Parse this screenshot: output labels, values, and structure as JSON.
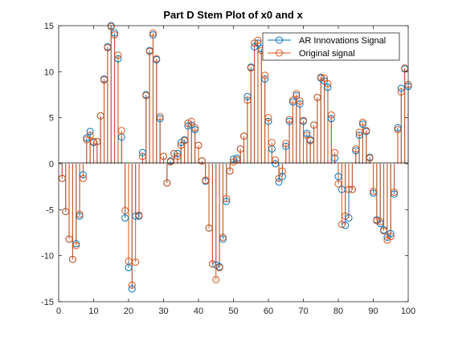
{
  "chart_data": {
    "type": "stem",
    "title": "Part D Stem Plot of x0 and x",
    "xlabel": "",
    "ylabel": "",
    "xlim": [
      0,
      100
    ],
    "ylim": [
      -15,
      15
    ],
    "xticks": [
      0,
      10,
      20,
      30,
      40,
      50,
      60,
      70,
      80,
      90,
      100
    ],
    "yticks": [
      -15,
      -10,
      -5,
      0,
      5,
      10,
      15
    ],
    "grid": false,
    "legend_position": "top-right",
    "x": [
      1,
      2,
      3,
      4,
      5,
      6,
      7,
      8,
      9,
      10,
      11,
      12,
      13,
      14,
      15,
      16,
      17,
      18,
      19,
      20,
      21,
      22,
      23,
      24,
      25,
      26,
      27,
      28,
      29,
      30,
      31,
      32,
      33,
      34,
      35,
      36,
      37,
      38,
      39,
      40,
      41,
      42,
      43,
      44,
      45,
      46,
      47,
      48,
      49,
      50,
      51,
      52,
      53,
      54,
      55,
      56,
      57,
      58,
      59,
      60,
      61,
      62,
      63,
      64,
      65,
      66,
      67,
      68,
      69,
      70,
      71,
      72,
      73,
      74,
      75,
      76,
      77,
      78,
      79,
      80,
      81,
      82,
      83,
      84,
      85,
      86,
      87,
      88,
      89,
      90,
      91,
      92,
      93,
      94,
      95,
      96,
      97,
      98,
      99,
      100
    ],
    "series": [
      {
        "name": "AR Innovations Signal",
        "color": "#0072BD",
        "values": [
          -1.6,
          -5.2,
          -8.2,
          -10.4,
          -8.7,
          -5.7,
          -1.2,
          2.8,
          3.5,
          2.3,
          2.4,
          5.2,
          9.2,
          12.7,
          15.0,
          14.2,
          11.4,
          2.9,
          -5.9,
          -11.3,
          -13.6,
          -5.7,
          -5.7,
          1.2,
          7.5,
          12.3,
          14.0,
          11.3,
          4.9,
          0.8,
          -2.1,
          0.3,
          1.1,
          1.1,
          2.3,
          2.6,
          4.1,
          4.2,
          3.7,
          2.0,
          0.3,
          -1.9,
          -7.0,
          -10.9,
          -11.0,
          -11.2,
          -8.2,
          -4.1,
          -0.8,
          0.5,
          0.6,
          1.6,
          3.0,
          7.3,
          10.5,
          12.7,
          13.1,
          12.5,
          9.2,
          4.6,
          1.6,
          0.0,
          -2.0,
          -1.4,
          1.9,
          4.6,
          6.7,
          7.4,
          6.5,
          4.6,
          3.3,
          2.6,
          4.2,
          7.2,
          9.3,
          9.0,
          8.3,
          4.9,
          0.6,
          -1.4,
          -2.8,
          -6.7,
          -5.9,
          -2.8,
          1.4,
          3.1,
          4.3,
          3.5,
          0.7,
          -3.2,
          -6.1,
          -6.5,
          -7.2,
          -8.0,
          -7.6,
          -3.3,
          3.9,
          8.2,
          10.3,
          8.4
        ]
      },
      {
        "name": "Original signal",
        "color": "#D95319",
        "values": [
          -1.6,
          -5.2,
          -8.2,
          -10.4,
          -8.9,
          -5.5,
          -1.6,
          2.6,
          3.1,
          2.4,
          2.4,
          5.2,
          9.1,
          12.6,
          14.9,
          14.0,
          11.8,
          3.6,
          -5.1,
          -10.6,
          -13.2,
          -10.7,
          -5.6,
          0.8,
          7.4,
          12.2,
          14.2,
          11.4,
          5.1,
          0.8,
          -2.1,
          0.2,
          1.1,
          0.8,
          2.0,
          2.5,
          4.4,
          4.6,
          3.9,
          2.0,
          0.3,
          -1.8,
          -7.0,
          -10.9,
          -12.6,
          -11.3,
          -8.0,
          -3.8,
          -0.8,
          0.2,
          0.4,
          1.6,
          3.0,
          6.9,
          10.4,
          13.1,
          13.4,
          12.3,
          9.6,
          5.0,
          2.3,
          0.4,
          -1.6,
          -0.8,
          2.2,
          4.8,
          6.9,
          7.6,
          6.8,
          4.7,
          3.1,
          2.5,
          4.2,
          7.2,
          9.4,
          9.3,
          8.7,
          5.3,
          1.2,
          -2.2,
          -6.6,
          -5.7,
          -2.8,
          -2.8,
          1.6,
          3.4,
          4.5,
          3.6,
          0.6,
          -3.0,
          -6.2,
          -6.3,
          -7.3,
          -8.3,
          -7.9,
          -3.1,
          3.7,
          7.8,
          10.4,
          8.6
        ]
      }
    ]
  }
}
